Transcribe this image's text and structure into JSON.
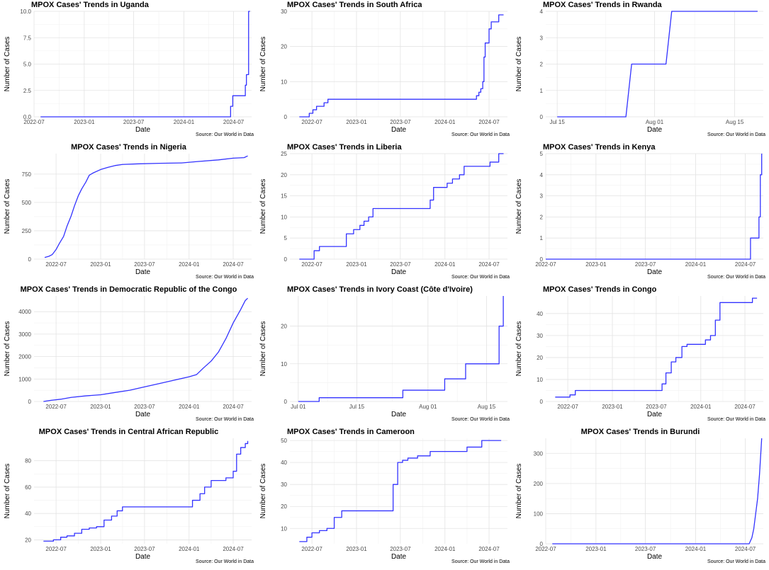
{
  "chart_data": [
    {
      "type": "line",
      "title": "MPOX Cases' Trends in Uganda",
      "title_align": "left",
      "xlabel": "Date",
      "ylabel": "Number of Cases",
      "caption": "Source: Our World in Data",
      "line_color": "#3333ff",
      "grid": true,
      "x_ticks": [
        "2022-07",
        "2023-01",
        "2023-07",
        "2024-01",
        "2024-07"
      ],
      "y_ticks": [
        "0.0",
        "2.5",
        "5.0",
        "7.5",
        "10.0"
      ],
      "xlim": [
        "2022-07-01",
        "2024-09-05"
      ],
      "ylim": [
        0,
        10
      ],
      "step": true,
      "series": [
        {
          "x": [
            "2022-07-25",
            "2024-06-15",
            "2024-06-20",
            "2024-06-28",
            "2024-08-08",
            "2024-08-13",
            "2024-08-17",
            "2024-08-21",
            "2024-08-25",
            "2024-08-30"
          ],
          "y": [
            0,
            0,
            1,
            2,
            2,
            3,
            4,
            4,
            10,
            10
          ]
        }
      ]
    },
    {
      "type": "line",
      "title": "MPOX Cases' Trends in South Africa",
      "title_align": "left",
      "xlabel": "Date",
      "ylabel": "Number of Cases",
      "caption": "Source: Our World in Data",
      "line_color": "#3333ff",
      "grid": true,
      "x_ticks": [
        "2022-07",
        "2023-01",
        "2023-07",
        "2024-01",
        "2024-07"
      ],
      "y_ticks": [
        "0",
        "10",
        "20",
        "30"
      ],
      "xlim": [
        "2022-04-01",
        "2024-09-15"
      ],
      "ylim": [
        0,
        30
      ],
      "step": true,
      "series": [
        {
          "x": [
            "2022-05-10",
            "2022-06-20",
            "2022-07-05",
            "2022-07-20",
            "2022-08-05",
            "2022-08-20",
            "2022-09-05",
            "2024-05-01",
            "2024-05-10",
            "2024-05-20",
            "2024-05-28",
            "2024-06-05",
            "2024-06-10",
            "2024-06-15",
            "2024-06-22",
            "2024-07-01",
            "2024-07-10",
            "2024-07-25",
            "2024-08-10",
            "2024-08-30"
          ],
          "y": [
            0,
            1,
            2,
            3,
            3,
            4,
            5,
            5,
            6,
            7,
            8,
            10,
            17,
            21,
            21,
            25,
            27,
            27,
            29,
            29
          ]
        }
      ]
    },
    {
      "type": "line",
      "title": "MPOX Cases' Trends in Rwanda",
      "title_align": "left",
      "xlabel": "Date",
      "ylabel": "Number of Cases",
      "caption": "Source: Our World in Data",
      "line_color": "#3333ff",
      "grid": true,
      "x_ticks": [
        "Jul 15",
        "Aug 01",
        "Aug 15"
      ],
      "y_ticks": [
        "0",
        "1",
        "2",
        "3",
        "4"
      ],
      "xlim": [
        "2024-07-13",
        "2024-08-20"
      ],
      "ylim": [
        0,
        4
      ],
      "step": false,
      "series": [
        {
          "x": [
            "2024-07-15",
            "2024-07-27",
            "2024-07-28",
            "2024-08-03",
            "2024-08-04",
            "2024-08-19"
          ],
          "y": [
            0,
            0,
            2,
            2,
            4,
            4
          ]
        }
      ]
    },
    {
      "type": "line",
      "title": "MPOX Cases' Trends in Nigeria",
      "title_align": "center",
      "xlabel": "Date",
      "ylabel": "Number of Cases",
      "caption": "Source: Our World in Data",
      "line_color": "#3333ff",
      "grid": true,
      "x_ticks": [
        "2022-07",
        "2023-01",
        "2023-07",
        "2024-01",
        "2024-07"
      ],
      "y_ticks": [
        "0",
        "250",
        "500",
        "750"
      ],
      "xlim": [
        "2022-04-01",
        "2024-09-15"
      ],
      "ylim": [
        0,
        930
      ],
      "step": false,
      "series": [
        {
          "x": [
            "2022-05-15",
            "2022-06-01",
            "2022-06-15",
            "2022-07-01",
            "2022-07-15",
            "2022-08-01",
            "2022-08-15",
            "2022-09-01",
            "2022-09-15",
            "2022-10-01",
            "2022-10-15",
            "2022-11-01",
            "2022-11-15",
            "2022-12-01",
            "2023-01-01",
            "2023-02-01",
            "2023-03-01",
            "2023-04-01",
            "2023-06-01",
            "2023-09-01",
            "2023-12-01",
            "2024-02-01",
            "2024-05-01",
            "2024-07-01",
            "2024-08-15",
            "2024-08-30"
          ],
          "y": [
            15,
            25,
            40,
            85,
            140,
            200,
            290,
            380,
            470,
            560,
            620,
            680,
            740,
            760,
            790,
            810,
            825,
            835,
            840,
            845,
            848,
            860,
            875,
            890,
            895,
            910
          ]
        }
      ]
    },
    {
      "type": "line",
      "title": "MPOX Cases' Trends in Liberia",
      "title_align": "left",
      "xlabel": "Date",
      "ylabel": "Number of Cases",
      "caption": "Source: Our World in Data",
      "line_color": "#3333ff",
      "grid": true,
      "x_ticks": [
        "2022-07",
        "2023-01",
        "2023-07",
        "2024-01",
        "2024-07"
      ],
      "y_ticks": [
        "0",
        "5",
        "10",
        "15",
        "20",
        "25"
      ],
      "xlim": [
        "2022-04-01",
        "2024-09-15"
      ],
      "ylim": [
        0,
        25
      ],
      "step": true,
      "series": [
        {
          "x": [
            "2022-05-10",
            "2022-07-10",
            "2022-08-01",
            "2022-10-20",
            "2022-11-20",
            "2022-12-20",
            "2023-01-15",
            "2023-02-01",
            "2023-02-20",
            "2023-03-10",
            "2023-10-20",
            "2023-11-01",
            "2023-11-15",
            "2023-12-20",
            "2024-01-10",
            "2024-02-01",
            "2024-03-01",
            "2024-03-20",
            "2024-06-20",
            "2024-07-05",
            "2024-08-10",
            "2024-08-30"
          ],
          "y": [
            0,
            2,
            3,
            3,
            6,
            7,
            8,
            9,
            10,
            12,
            12,
            14,
            17,
            17,
            18,
            19,
            20,
            22,
            22,
            23,
            25,
            25
          ]
        }
      ]
    },
    {
      "type": "line",
      "title": "MPOX Cases' Trends in Kenya",
      "title_align": "left",
      "xlabel": "Date",
      "ylabel": "Number of Cases",
      "caption": "Source: Our World in Data",
      "line_color": "#3333ff",
      "grid": true,
      "x_ticks": [
        "2022-07",
        "2023-01",
        "2023-07",
        "2024-01",
        "2024-07"
      ],
      "y_ticks": [
        "0",
        "1",
        "2",
        "3",
        "4",
        "5"
      ],
      "xlim": [
        "2022-07-01",
        "2024-09-05"
      ],
      "ylim": [
        0,
        5
      ],
      "step": true,
      "series": [
        {
          "x": [
            "2022-07-01",
            "2024-07-20",
            "2024-08-15",
            "2024-08-20",
            "2024-08-25",
            "2024-08-30"
          ],
          "y": [
            0,
            1,
            1,
            2,
            4,
            5
          ]
        }
      ]
    },
    {
      "type": "line",
      "title": "MPOX Cases' Trends in Democratic Republic of the Congo",
      "title_align": "center",
      "xlabel": "Date",
      "ylabel": "Number of Cases",
      "caption": "Source: Our World in Data",
      "line_color": "#3333ff",
      "grid": true,
      "x_ticks": [
        "2022-07",
        "2023-01",
        "2023-07",
        "2024-01",
        "2024-07"
      ],
      "y_ticks": [
        "0",
        "1000",
        "2000",
        "3000",
        "4000"
      ],
      "xlim": [
        "2022-04-01",
        "2024-09-15"
      ],
      "ylim": [
        0,
        4700
      ],
      "step": false,
      "series": [
        {
          "x": [
            "2022-05-10",
            "2022-06-10",
            "2022-07-20",
            "2022-09-01",
            "2022-11-01",
            "2023-01-01",
            "2023-03-01",
            "2023-05-01",
            "2023-07-01",
            "2023-09-01",
            "2023-11-01",
            "2024-01-01",
            "2024-02-01",
            "2024-03-01",
            "2024-04-01",
            "2024-05-01",
            "2024-06-01",
            "2024-07-01",
            "2024-08-01",
            "2024-08-20",
            "2024-08-30"
          ],
          "y": [
            0,
            50,
            100,
            180,
            250,
            300,
            400,
            500,
            650,
            800,
            950,
            1100,
            1200,
            1500,
            1800,
            2200,
            2800,
            3500,
            4100,
            4500,
            4600
          ]
        }
      ]
    },
    {
      "type": "line",
      "title": "MPOX Cases' Trends in Ivory Coast (Côte d'Ivoire)",
      "title_align": "left",
      "xlabel": "Date",
      "ylabel": "Number of Cases",
      "caption": "Source: Our World in Data",
      "line_color": "#3333ff",
      "grid": true,
      "x_ticks": [
        "Jul 01",
        "Jul 15",
        "Aug 01",
        "Aug 15"
      ],
      "y_ticks": [
        "0",
        "10",
        "20"
      ],
      "xlim": [
        "2024-06-29",
        "2024-08-20"
      ],
      "ylim": [
        0,
        28
      ],
      "step": true,
      "series": [
        {
          "x": [
            "2024-07-01",
            "2024-07-06",
            "2024-07-26",
            "2024-08-05",
            "2024-08-10",
            "2024-08-16",
            "2024-08-18",
            "2024-08-19"
          ],
          "y": [
            0,
            1,
            3,
            6,
            10,
            10,
            20,
            28
          ]
        }
      ]
    },
    {
      "type": "line",
      "title": "MPOX Cases' Trends in Congo",
      "title_align": "left",
      "xlabel": "Date",
      "ylabel": "Number of Cases",
      "caption": "Source: Our World in Data",
      "line_color": "#3333ff",
      "grid": true,
      "x_ticks": [
        "2022-07",
        "2023-01",
        "2023-07",
        "2024-01",
        "2024-07"
      ],
      "y_ticks": [
        "0",
        "10",
        "20",
        "30",
        "40"
      ],
      "xlim": [
        "2022-04-01",
        "2024-09-15"
      ],
      "ylim": [
        0,
        48
      ],
      "step": true,
      "series": [
        {
          "x": [
            "2022-05-10",
            "2022-07-10",
            "2022-08-01",
            "2023-07-10",
            "2023-07-25",
            "2023-08-10",
            "2023-09-01",
            "2023-09-20",
            "2023-10-15",
            "2023-11-05",
            "2024-01-01",
            "2024-01-20",
            "2024-02-10",
            "2024-03-01",
            "2024-03-20",
            "2024-07-20",
            "2024-08-01",
            "2024-08-20"
          ],
          "y": [
            2,
            3,
            5,
            5,
            8,
            13,
            18,
            20,
            25,
            26,
            26,
            28,
            30,
            37,
            45,
            45,
            47,
            47
          ]
        }
      ]
    },
    {
      "type": "line",
      "title": "MPOX Cases' Trends in Central African Republic",
      "title_align": "center",
      "xlabel": "Date",
      "ylabel": "Number of Cases",
      "caption": "Source: Our World in Data",
      "line_color": "#3333ff",
      "grid": true,
      "x_ticks": [
        "2022-07",
        "2023-01",
        "2023-07",
        "2024-01",
        "2024-07"
      ],
      "y_ticks": [
        "20",
        "40",
        "60",
        "80"
      ],
      "xlim": [
        "2022-04-01",
        "2024-09-15"
      ],
      "ylim": [
        17,
        97
      ],
      "step": true,
      "series": [
        {
          "x": [
            "2022-05-10",
            "2022-06-20",
            "2022-07-20",
            "2022-08-15",
            "2022-09-15",
            "2022-10-15",
            "2022-11-15",
            "2022-12-15",
            "2023-01-15",
            "2023-02-15",
            "2023-03-10",
            "2023-04-01",
            "2023-12-20",
            "2024-01-15",
            "2024-02-15",
            "2024-03-05",
            "2024-04-01",
            "2024-06-01",
            "2024-07-01",
            "2024-07-15",
            "2024-08-01",
            "2024-08-20",
            "2024-08-30"
          ],
          "y": [
            19,
            20,
            22,
            23,
            25,
            28,
            29,
            30,
            35,
            38,
            42,
            45,
            45,
            50,
            55,
            60,
            65,
            67,
            72,
            85,
            90,
            93,
            95
          ]
        }
      ]
    },
    {
      "type": "line",
      "title": "MPOX Cases' Trends in Cameroon",
      "title_align": "left",
      "xlabel": "Date",
      "ylabel": "Number of Cases",
      "caption": "Source: Our World in Data",
      "line_color": "#3333ff",
      "grid": true,
      "x_ticks": [
        "2022-07",
        "2023-01",
        "2023-07",
        "2024-01",
        "2024-07"
      ],
      "y_ticks": [
        "10",
        "20",
        "30",
        "40",
        "50"
      ],
      "xlim": [
        "2022-04-01",
        "2024-09-15"
      ],
      "ylim": [
        3,
        51
      ],
      "step": true,
      "series": [
        {
          "x": [
            "2022-05-10",
            "2022-06-10",
            "2022-07-01",
            "2022-08-01",
            "2022-09-01",
            "2022-10-01",
            "2022-11-01",
            "2023-05-15",
            "2023-06-01",
            "2023-06-20",
            "2023-07-10",
            "2023-08-01",
            "2023-09-10",
            "2023-11-01",
            "2024-01-10",
            "2024-04-01",
            "2024-06-01",
            "2024-08-20"
          ],
          "y": [
            4,
            6,
            8,
            9,
            10,
            15,
            18,
            18,
            30,
            40,
            41,
            42,
            43,
            45,
            45,
            47,
            50,
            50
          ]
        }
      ]
    },
    {
      "type": "line",
      "title": "MPOX Cases' Trends in Burundi",
      "title_align": "center",
      "xlabel": "Date",
      "ylabel": "Number of Cases",
      "caption": "Source: Our World in Data",
      "line_color": "#3333ff",
      "grid": true,
      "x_ticks": [
        "2022-07",
        "2023-01",
        "2023-07",
        "2024-01",
        "2024-07"
      ],
      "y_ticks": [
        "0",
        "100",
        "200",
        "300"
      ],
      "xlim": [
        "2022-07-01",
        "2024-09-05"
      ],
      "ylim": [
        0,
        350
      ],
      "step": false,
      "series": [
        {
          "x": [
            "2022-07-25",
            "2024-07-15",
            "2024-07-25",
            "2024-08-01",
            "2024-08-08",
            "2024-08-15",
            "2024-08-22",
            "2024-08-30"
          ],
          "y": [
            0,
            0,
            20,
            50,
            100,
            150,
            230,
            350
          ]
        }
      ]
    }
  ]
}
